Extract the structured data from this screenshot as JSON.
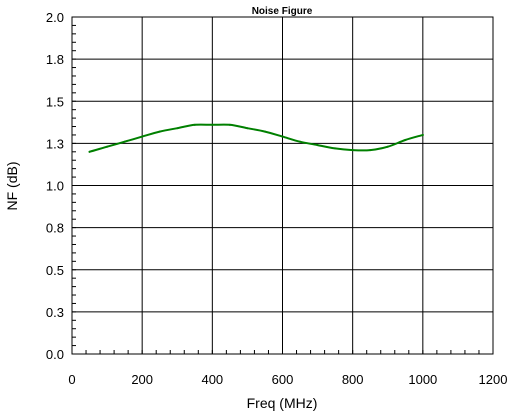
{
  "chart_data": {
    "type": "line",
    "title": "Noise Figure",
    "xlabel": "Freq (MHz)",
    "ylabel": "NF (dB)",
    "xlim": [
      0,
      1200
    ],
    "ylim": [
      0,
      2.0
    ],
    "grid": true,
    "x_ticks": [
      0,
      200,
      400,
      600,
      800,
      1000,
      1200
    ],
    "x_tick_labels": [
      "0",
      "200",
      "400",
      "600",
      "800",
      "1000",
      "1200"
    ],
    "y_ticks": [
      0,
      0.25,
      0.5,
      0.75,
      1.0,
      1.25,
      1.5,
      1.75,
      2.0
    ],
    "y_tick_labels": [
      "0.0",
      "0.3",
      "0.5",
      "0.8",
      "1.0",
      "1.3",
      "1.5",
      "1.8",
      "2.0"
    ],
    "series": [
      {
        "color": "#008000",
        "x": [
          50,
          100,
          150,
          200,
          250,
          300,
          350,
          400,
          450,
          500,
          550,
          600,
          650,
          700,
          750,
          800,
          850,
          900,
          950,
          1000
        ],
        "y": [
          1.2,
          1.23,
          1.26,
          1.29,
          1.32,
          1.34,
          1.36,
          1.36,
          1.36,
          1.34,
          1.32,
          1.29,
          1.26,
          1.24,
          1.22,
          1.21,
          1.21,
          1.23,
          1.27,
          1.3
        ]
      }
    ]
  }
}
